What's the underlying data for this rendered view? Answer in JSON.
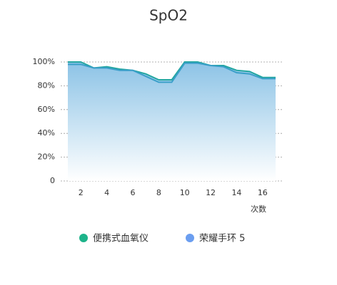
{
  "chart_data": {
    "type": "line",
    "title": "SpO2",
    "x_label": "次数",
    "x": [
      1,
      2,
      3,
      4,
      5,
      6,
      7,
      8,
      9,
      10,
      11,
      12,
      13,
      14,
      15,
      16,
      17
    ],
    "xlim": [
      1,
      17
    ],
    "xticks": [
      2,
      4,
      6,
      8,
      10,
      12,
      14,
      16
    ],
    "ylim": [
      0,
      100
    ],
    "yticks": [
      0,
      {
        "value": 20,
        "label": "20%"
      },
      {
        "value": 40,
        "label": "40%"
      },
      {
        "value": 60,
        "label": "60%"
      },
      {
        "value": 80,
        "label": "80%"
      },
      {
        "value": 100,
        "label": "100%"
      }
    ],
    "grid": true,
    "series": [
      {
        "name": "便携式血氧仪",
        "color": "#1db38a",
        "values": [
          100,
          100,
          95,
          96,
          94,
          93,
          90,
          85,
          85,
          100,
          100,
          97,
          97,
          93,
          92,
          87,
          87
        ]
      },
      {
        "name": "荣耀手环 5",
        "color": "#6b9ef0",
        "values": [
          98,
          98,
          95,
          95,
          93,
          93,
          88,
          83,
          83,
          99,
          99,
          97,
          96,
          91,
          90,
          86,
          86
        ]
      }
    ]
  }
}
